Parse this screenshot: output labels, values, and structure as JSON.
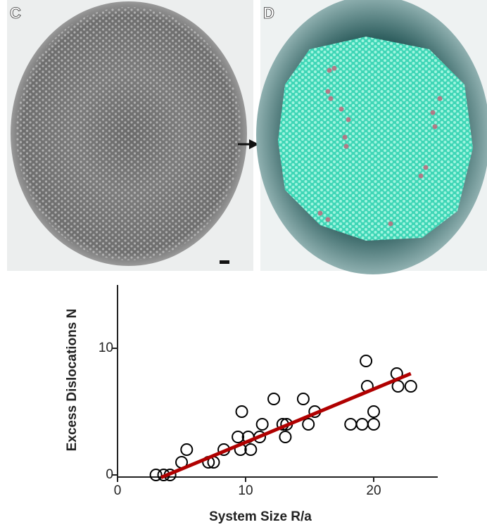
{
  "panels": [
    {
      "label": "C"
    },
    {
      "label": "D"
    }
  ],
  "chart_data": {
    "type": "scatter",
    "xlabel": "System Size R/a",
    "ylabel": "Excess Dislocations N",
    "xlim": [
      0,
      25
    ],
    "ylim": [
      0,
      15
    ],
    "xticks": [
      0,
      10,
      20
    ],
    "yticks": [
      0,
      10
    ],
    "series": [
      {
        "color": "#000000",
        "x": [
          3.0,
          3.6,
          4.1,
          5.0,
          5.4,
          7.1,
          7.5,
          8.3,
          9.7,
          9.4,
          9.6,
          10.2,
          10.4,
          11.1,
          11.3,
          12.2,
          12.9,
          13.1,
          13.2,
          14.5,
          14.9,
          15.4,
          18.2,
          19.1,
          19.4,
          19.5,
          20.0,
          20.0,
          21.8,
          21.9,
          22.9
        ],
        "values": [
          0,
          0,
          0,
          1,
          2,
          1,
          1,
          2,
          5,
          3,
          2,
          3,
          2,
          3,
          4,
          6,
          4,
          3,
          4,
          6,
          4,
          5,
          4,
          4,
          9,
          7,
          4,
          5,
          8,
          7,
          7
        ]
      }
    ],
    "fit": {
      "color": "#b00000",
      "x": [
        3.4,
        22.9
      ],
      "values": [
        -0.2,
        8.0
      ]
    }
  }
}
